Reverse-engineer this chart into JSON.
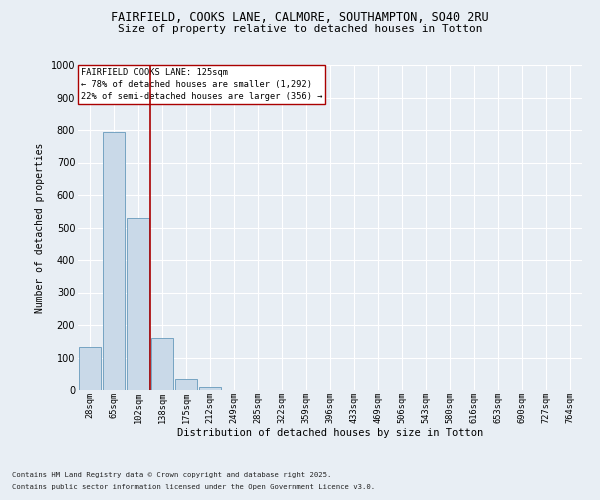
{
  "title1": "FAIRFIELD, COOKS LANE, CALMORE, SOUTHAMPTON, SO40 2RU",
  "title2": "Size of property relative to detached houses in Totton",
  "xlabel": "Distribution of detached houses by size in Totton",
  "ylabel": "Number of detached properties",
  "categories": [
    "28sqm",
    "65sqm",
    "102sqm",
    "138sqm",
    "175sqm",
    "212sqm",
    "249sqm",
    "285sqm",
    "322sqm",
    "359sqm",
    "396sqm",
    "433sqm",
    "469sqm",
    "506sqm",
    "543sqm",
    "580sqm",
    "616sqm",
    "653sqm",
    "690sqm",
    "727sqm",
    "764sqm"
  ],
  "values": [
    133,
    793,
    530,
    160,
    35,
    10,
    0,
    0,
    0,
    0,
    0,
    0,
    0,
    0,
    0,
    0,
    0,
    0,
    0,
    0,
    0
  ],
  "bar_color": "#c9d9e8",
  "bar_edge_color": "#6699bb",
  "vline_color": "#aa0000",
  "annotation_title": "FAIRFIELD COOKS LANE: 125sqm",
  "annotation_line1": "← 78% of detached houses are smaller (1,292)",
  "annotation_line2": "22% of semi-detached houses are larger (356) →",
  "annotation_box_color": "#ffffff",
  "annotation_box_edge": "#aa0000",
  "ylim": [
    0,
    1000
  ],
  "yticks": [
    0,
    100,
    200,
    300,
    400,
    500,
    600,
    700,
    800,
    900,
    1000
  ],
  "footer1": "Contains HM Land Registry data © Crown copyright and database right 2025.",
  "footer2": "Contains public sector information licensed under the Open Government Licence v3.0.",
  "bg_color": "#e8eef4",
  "plot_bg_color": "#e8eef4"
}
